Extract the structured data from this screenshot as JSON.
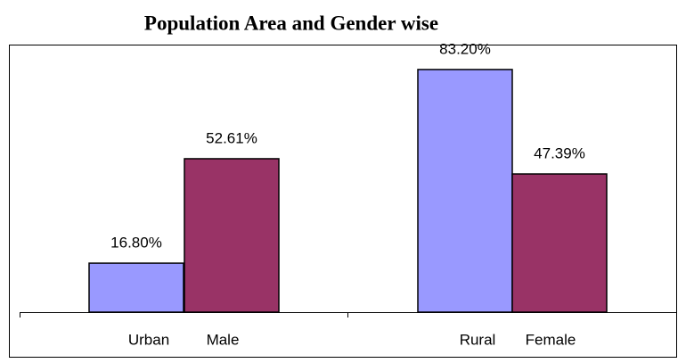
{
  "chart_data": {
    "type": "bar",
    "title": "Population Area and Gender wise",
    "categories": [
      "Urban",
      "Male",
      "Rural",
      "Female"
    ],
    "values": [
      16.8,
      52.61,
      83.2,
      47.39
    ],
    "value_labels": [
      "16.80%",
      "52.61%",
      "83.20%",
      "47.39%"
    ],
    "colors": [
      "#9999ff",
      "#993366",
      "#9999ff",
      "#993366"
    ]
  }
}
